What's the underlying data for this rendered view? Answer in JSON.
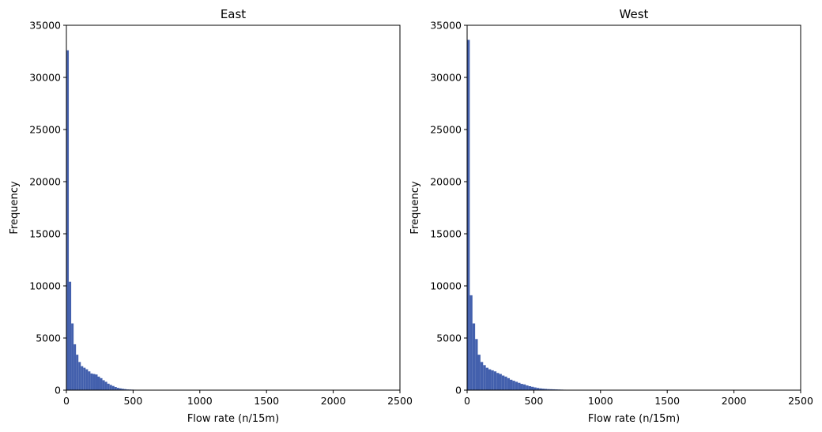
{
  "chart_data": [
    {
      "type": "bar",
      "subtype": "histogram",
      "title": "East",
      "xlabel": "Flow rate (n/15m)",
      "ylabel": "Frequency",
      "xlim": [
        0,
        2500
      ],
      "ylim": [
        0,
        35000
      ],
      "xticks": [
        0,
        500,
        1000,
        1500,
        2000,
        2500
      ],
      "yticks": [
        0,
        5000,
        10000,
        15000,
        20000,
        25000,
        30000,
        35000
      ],
      "xtick_labels": [
        "0",
        "500",
        "1000",
        "1500",
        "2000",
        "2500"
      ],
      "ytick_labels": [
        "0",
        "5000",
        "10000",
        "15000",
        "20000",
        "25000",
        "30000",
        "35000"
      ],
      "bin_start": 0,
      "bin_width": 18,
      "values": [
        32600,
        10400,
        6400,
        4400,
        3400,
        2700,
        2300,
        2150,
        2000,
        1800,
        1600,
        1550,
        1500,
        1300,
        1150,
        950,
        800,
        620,
        500,
        400,
        300,
        220,
        170,
        130,
        100,
        70,
        60,
        50,
        40,
        30,
        25,
        20,
        15,
        10,
        8,
        6,
        5,
        4,
        3,
        3
      ],
      "color": "#4360ad",
      "grid": false
    },
    {
      "type": "bar",
      "subtype": "histogram",
      "title": "West",
      "xlabel": "Flow rate (n/15m)",
      "ylabel": "Frequency",
      "xlim": [
        0,
        2500
      ],
      "ylim": [
        0,
        35000
      ],
      "xticks": [
        0,
        500,
        1000,
        1500,
        2000,
        2500
      ],
      "yticks": [
        0,
        5000,
        10000,
        15000,
        20000,
        25000,
        30000,
        35000
      ],
      "xtick_labels": [
        "0",
        "500",
        "1000",
        "1500",
        "2000",
        "2500"
      ],
      "ytick_labels": [
        "0",
        "5000",
        "10000",
        "15000",
        "20000",
        "25000",
        "30000",
        "35000"
      ],
      "bin_start": 0,
      "bin_width": 20,
      "values": [
        33600,
        9100,
        6400,
        4900,
        3400,
        2700,
        2400,
        2150,
        2000,
        1900,
        1800,
        1650,
        1550,
        1400,
        1300,
        1150,
        1000,
        900,
        800,
        700,
        600,
        550,
        450,
        380,
        320,
        260,
        210,
        170,
        140,
        120,
        100,
        90,
        80,
        70,
        60,
        50,
        40,
        35,
        30,
        25,
        20,
        15,
        12,
        10,
        8,
        6,
        5,
        4,
        3,
        2
      ],
      "color": "#4360ad",
      "grid": false
    }
  ]
}
